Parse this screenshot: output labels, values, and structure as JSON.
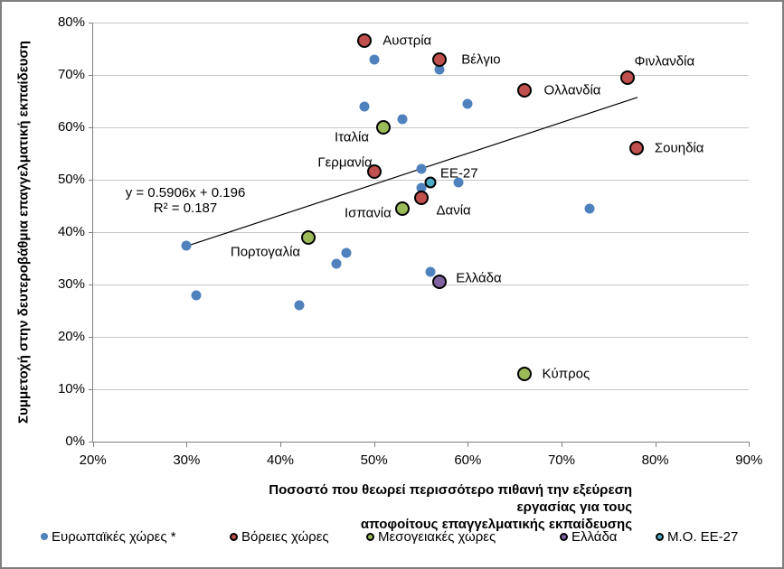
{
  "chart_data": {
    "type": "scatter",
    "title": "",
    "ylabel": "Συμμετοχή στην δευτεροβάθμια επαγγελματική  εκπαίδευση",
    "xlabel_line1": "Ποσοστό που θεωρεί περισσότερο πιθανή την εξεύρεση εργασίας για  τους",
    "xlabel_line2": "αποφοίτους επαγγελματικής  εκπαίδευσης",
    "xlim": [
      20,
      90
    ],
    "ylim": [
      0,
      80
    ],
    "x_ticks": [
      20,
      30,
      40,
      50,
      60,
      70,
      80,
      90
    ],
    "y_ticks": [
      0,
      10,
      20,
      30,
      40,
      50,
      60,
      70,
      80
    ],
    "tick_suffix": "%",
    "grid": "horizontal",
    "legend_position": "bottom",
    "legend_x": [
      43,
      252,
      403,
      617,
      723
    ],
    "trendline": {
      "equation_label": "y = 0.5906x  + 0.196",
      "r2_label": "R² = 0.187",
      "slope": 0.5906,
      "intercept_pct": 19.6,
      "x_start_pct": 29.8,
      "x_end_pct": 78.1,
      "color": "#000000"
    },
    "series": [
      {
        "name": "Ευρωπαϊκές χώρες *",
        "color": "#4F81BD",
        "outlined": false,
        "marker_size": 11,
        "points": [
          {
            "x": 50,
            "y": 73
          },
          {
            "x": 57,
            "y": 71
          },
          {
            "x": 49,
            "y": 64
          },
          {
            "x": 53,
            "y": 61.5
          },
          {
            "x": 60,
            "y": 64.5
          },
          {
            "x": 55,
            "y": 52
          },
          {
            "x": 55,
            "y": 48.5
          },
          {
            "x": 59,
            "y": 49.5
          },
          {
            "x": 73,
            "y": 44.5
          },
          {
            "x": 30,
            "y": 37.5
          },
          {
            "x": 31,
            "y": 28
          },
          {
            "x": 46,
            "y": 34
          },
          {
            "x": 47,
            "y": 36
          },
          {
            "x": 42,
            "y": 26
          },
          {
            "x": 56,
            "y": 32.5
          }
        ]
      },
      {
        "name": "Βόρειες χώρες",
        "color": "#C0504D",
        "outlined": true,
        "marker_size": 12,
        "points": [
          {
            "x": 49,
            "y": 76.5,
            "label": "Αυστρία",
            "dx": 20,
            "dy": 0,
            "anchor": "left"
          },
          {
            "x": 57,
            "y": 73,
            "label": "Βέλγιο",
            "dx": 24,
            "dy": 0,
            "anchor": "left"
          },
          {
            "x": 77,
            "y": 69.5,
            "label": "Φινλανδία",
            "dx": 8,
            "dy": -18,
            "anchor": "left"
          },
          {
            "x": 66,
            "y": 67,
            "label": "Ολλανδία",
            "dx": 22,
            "dy": 0,
            "anchor": "left"
          },
          {
            "x": 78,
            "y": 56,
            "label": "Σουηδία",
            "dx": 20,
            "dy": 0,
            "anchor": "left"
          },
          {
            "x": 50,
            "y": 51.5,
            "label": "Γερμανία",
            "dx": -2,
            "dy": -10,
            "anchor": "right"
          },
          {
            "x": 55,
            "y": 46.5,
            "label": "Δανία",
            "dx": 17,
            "dy": 14,
            "anchor": "left"
          }
        ]
      },
      {
        "name": "Μεσογειακές χώρες",
        "color": "#9BBB59",
        "outlined": true,
        "marker_size": 12,
        "points": [
          {
            "x": 51,
            "y": 60,
            "label": "Ιταλία",
            "dx": -16,
            "dy": 11,
            "anchor": "right"
          },
          {
            "x": 53,
            "y": 44.5,
            "label": "Ισπανία",
            "dx": -12,
            "dy": 5,
            "anchor": "right"
          },
          {
            "x": 43,
            "y": 39,
            "label": "Πορτογαλία",
            "dx": -9,
            "dy": 16,
            "anchor": "right"
          },
          {
            "x": 66,
            "y": 13,
            "label": "Κύπρος",
            "dx": 20,
            "dy": 0,
            "anchor": "left"
          }
        ]
      },
      {
        "name": "Ελλάδα",
        "color": "#8064A2",
        "outlined": true,
        "marker_size": 12,
        "points": [
          {
            "x": 57,
            "y": 30.5,
            "label": "Ελλάδα",
            "dx": 18,
            "dy": -4,
            "anchor": "left"
          }
        ]
      },
      {
        "name": "Μ.Ο. ΕΕ-27",
        "color": "#4BACC6",
        "outlined": true,
        "marker_size": 9,
        "points": [
          {
            "x": 56,
            "y": 49.5,
            "label": "ΕΕ-27",
            "dx": 11,
            "dy": -10,
            "anchor": "left"
          }
        ]
      }
    ]
  }
}
